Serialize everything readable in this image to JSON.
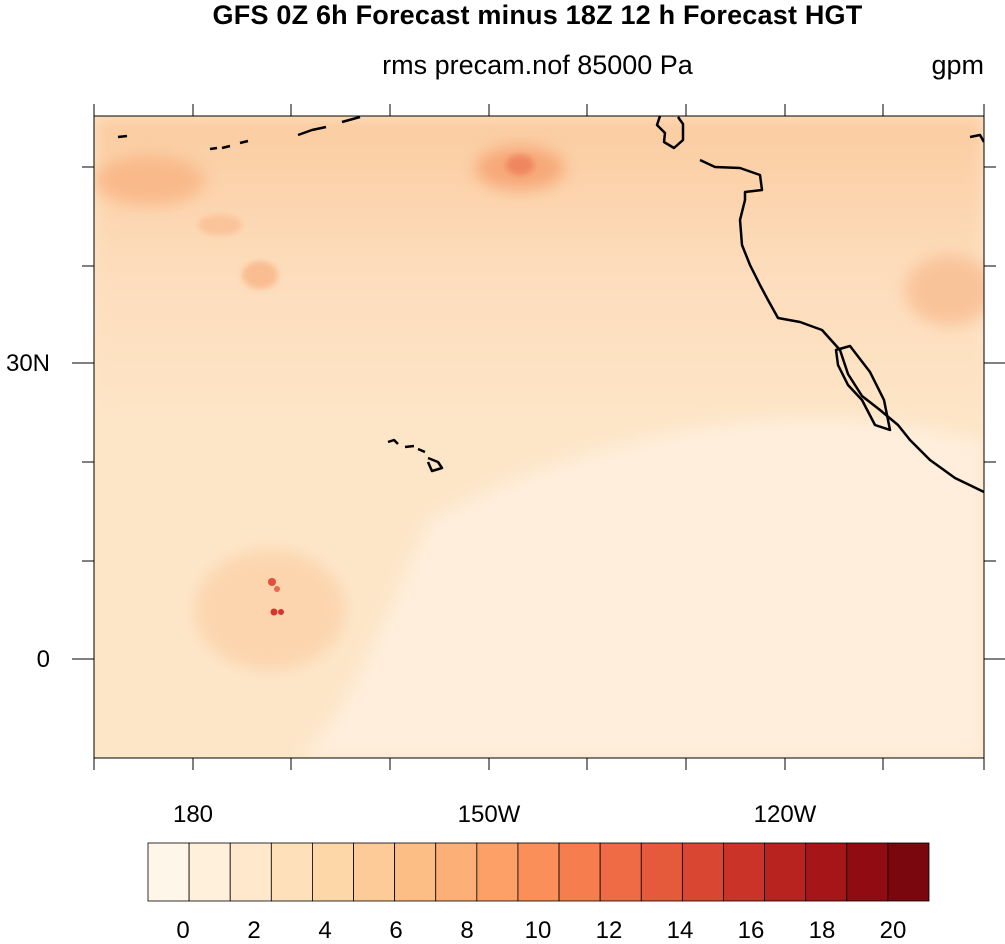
{
  "header": {
    "title": "GFS 0Z 6h Forecast minus 18Z 12 h Forecast HGT",
    "subtitle": "rms precam.nof 85000 Pa",
    "units": "gpm"
  },
  "axes": {
    "x_labels": [
      "180",
      "150W",
      "120W"
    ],
    "y_labels": [
      "30N",
      "0"
    ]
  },
  "colorbar": {
    "labels": [
      "0",
      "2",
      "4",
      "6",
      "8",
      "10",
      "12",
      "14",
      "16",
      "18",
      "20"
    ],
    "colors": [
      "#fff6ea",
      "#fff0dc",
      "#ffe8cb",
      "#fee1bb",
      "#fed7a9",
      "#fdcb97",
      "#fdbe86",
      "#fcb077",
      "#fca068",
      "#fa8f59",
      "#f67e4e",
      "#ef6b45",
      "#e55a3b",
      "#d94632",
      "#ca3327",
      "#b8221f",
      "#a61618",
      "#910c12",
      "#7a060e"
    ]
  },
  "map": {
    "background_color": "#fde6c8",
    "coastline_color": "#000000"
  }
}
